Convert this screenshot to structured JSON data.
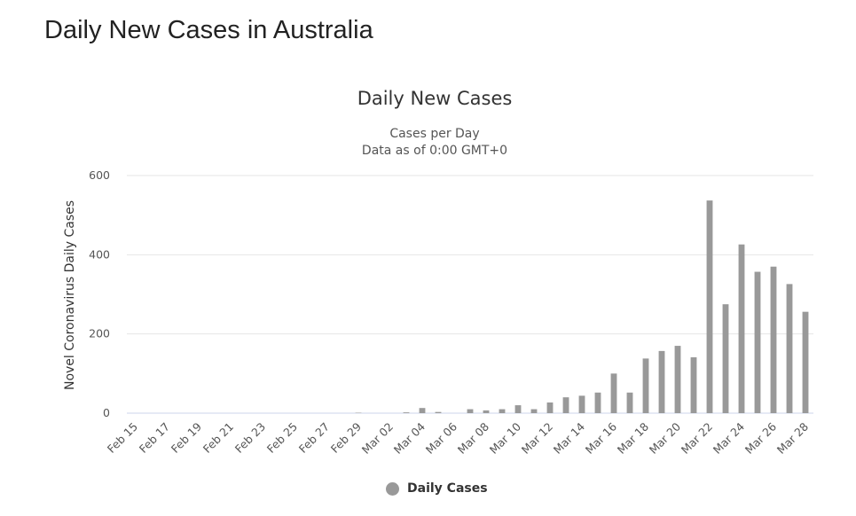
{
  "page": {
    "heading": "Daily New Cases in Australia"
  },
  "colors": {
    "bar": "#999999",
    "grid": "#e6e6e6",
    "axis": "#ccd6eb"
  },
  "chart_data": {
    "type": "bar",
    "title": "Daily New Cases",
    "subtitle_lines": [
      "Cases per Day",
      "Data as of 0:00 GMT+0"
    ],
    "ylabel": "Novel Coronavirus Daily Cases",
    "xlabel": "",
    "ylim": [
      0,
      600
    ],
    "yticks": [
      0,
      200,
      400,
      600
    ],
    "grid": true,
    "legend": {
      "position": "bottom-center",
      "entries": [
        "Daily Cases"
      ]
    },
    "categories": [
      "Feb 15",
      "Feb 16",
      "Feb 17",
      "Feb 18",
      "Feb 19",
      "Feb 20",
      "Feb 21",
      "Feb 22",
      "Feb 23",
      "Feb 24",
      "Feb 25",
      "Feb 26",
      "Feb 27",
      "Feb 28",
      "Feb 29",
      "Mar 01",
      "Mar 02",
      "Mar 03",
      "Mar 04",
      "Mar 05",
      "Mar 06",
      "Mar 07",
      "Mar 08",
      "Mar 09",
      "Mar 10",
      "Mar 11",
      "Mar 12",
      "Mar 13",
      "Mar 14",
      "Mar 15",
      "Mar 16",
      "Mar 17",
      "Mar 18",
      "Mar 19",
      "Mar 20",
      "Mar 21",
      "Mar 22",
      "Mar 23",
      "Mar 24",
      "Mar 25",
      "Mar 26",
      "Mar 27",
      "Mar 28"
    ],
    "tick_labels": [
      "Feb 15",
      "Feb 17",
      "Feb 19",
      "Feb 21",
      "Feb 23",
      "Feb 25",
      "Feb 27",
      "Feb 29",
      "Mar 02",
      "Mar 04",
      "Mar 06",
      "Mar 08",
      "Mar 10",
      "Mar 12",
      "Mar 14",
      "Mar 16",
      "Mar 18",
      "Mar 20",
      "Mar 22",
      "Mar 24",
      "Mar 26",
      "Mar 28"
    ],
    "series": [
      {
        "name": "Daily Cases",
        "values": [
          0,
          0,
          0,
          0,
          0,
          0,
          0,
          0,
          0,
          0,
          0,
          0,
          0,
          0,
          1,
          0,
          0,
          2,
          13,
          3,
          0,
          10,
          7,
          10,
          20,
          10,
          27,
          40,
          44,
          52,
          100,
          52,
          138,
          157,
          170,
          141,
          537,
          275,
          426,
          357,
          370,
          326,
          256
        ]
      }
    ]
  }
}
